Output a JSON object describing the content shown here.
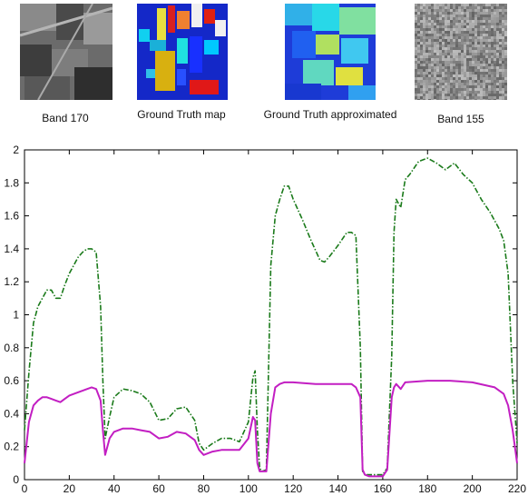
{
  "thumbnails": [
    {
      "caption": "Band 170",
      "kind": "grayscale-band-image"
    },
    {
      "caption": "Ground Truth map",
      "kind": "classification-map"
    },
    {
      "caption": "Ground Truth approximated",
      "kind": "approximated-map"
    },
    {
      "caption": "Band 155",
      "kind": "noise-band-image"
    }
  ],
  "colors": {
    "green_series": "#1a7a1a",
    "magenta_series": "#c21ec2",
    "axis": "#000000"
  },
  "chart_data": {
    "type": "line",
    "title": "",
    "xlabel": "",
    "ylabel": "",
    "xlim": [
      0,
      220
    ],
    "ylim": [
      0,
      2
    ],
    "xticks": [
      "0",
      "20",
      "40",
      "60",
      "80",
      "100",
      "120",
      "140",
      "160",
      "180",
      "200",
      "220"
    ],
    "yticks": [
      "0",
      "0.2",
      "0.4",
      "0.6",
      "0.8",
      "1",
      "1.2",
      "1.4",
      "1.6",
      "1.8",
      "2"
    ],
    "grid": false,
    "series": [
      {
        "style": "dash-dot",
        "color": "#1a7a1a",
        "x": [
          0,
          2,
          4,
          6,
          8,
          10,
          12,
          14,
          16,
          18,
          20,
          22,
          24,
          26,
          28,
          30,
          32,
          34,
          35,
          36,
          38,
          40,
          44,
          48,
          52,
          56,
          60,
          64,
          68,
          72,
          76,
          78,
          80,
          84,
          88,
          92,
          96,
          100,
          102,
          103,
          104,
          105,
          106,
          108,
          110,
          112,
          114,
          116,
          118,
          120,
          124,
          128,
          132,
          134,
          136,
          140,
          144,
          146,
          148,
          150,
          151,
          152,
          154,
          156,
          158,
          160,
          162,
          164,
          165,
          166,
          168,
          170,
          172,
          176,
          180,
          184,
          188,
          192,
          196,
          200,
          204,
          208,
          212,
          214,
          216,
          218,
          220
        ],
        "values": [
          0.3,
          0.65,
          0.95,
          1.05,
          1.1,
          1.15,
          1.15,
          1.1,
          1.1,
          1.18,
          1.25,
          1.3,
          1.35,
          1.38,
          1.4,
          1.4,
          1.38,
          1.05,
          0.6,
          0.25,
          0.38,
          0.5,
          0.55,
          0.54,
          0.52,
          0.47,
          0.36,
          0.37,
          0.43,
          0.44,
          0.36,
          0.22,
          0.18,
          0.22,
          0.25,
          0.25,
          0.23,
          0.35,
          0.62,
          0.66,
          0.3,
          0.07,
          0.05,
          0.06,
          1.3,
          1.6,
          1.7,
          1.78,
          1.78,
          1.7,
          1.58,
          1.45,
          1.33,
          1.32,
          1.35,
          1.42,
          1.5,
          1.5,
          1.48,
          0.8,
          0.05,
          0.03,
          0.03,
          0.03,
          0.03,
          0.03,
          0.07,
          0.75,
          1.5,
          1.7,
          1.65,
          1.82,
          1.85,
          1.93,
          1.95,
          1.92,
          1.88,
          1.92,
          1.85,
          1.8,
          1.7,
          1.62,
          1.52,
          1.45,
          1.25,
          0.6,
          0.22
        ]
      },
      {
        "style": "solid",
        "color": "#c21ec2",
        "x": [
          0,
          2,
          4,
          6,
          8,
          10,
          12,
          14,
          16,
          18,
          20,
          24,
          28,
          30,
          32,
          34,
          35,
          36,
          38,
          40,
          44,
          48,
          52,
          56,
          60,
          64,
          68,
          72,
          76,
          78,
          80,
          84,
          88,
          92,
          96,
          100,
          102,
          103,
          104,
          105,
          106,
          108,
          110,
          112,
          114,
          116,
          120,
          130,
          140,
          146,
          148,
          150,
          151,
          152,
          154,
          156,
          158,
          160,
          162,
          164,
          165,
          166,
          168,
          170,
          180,
          190,
          200,
          210,
          214,
          216,
          218,
          220
        ],
        "values": [
          0.1,
          0.35,
          0.45,
          0.48,
          0.5,
          0.5,
          0.49,
          0.48,
          0.47,
          0.49,
          0.51,
          0.53,
          0.55,
          0.56,
          0.55,
          0.48,
          0.3,
          0.15,
          0.25,
          0.29,
          0.31,
          0.31,
          0.3,
          0.29,
          0.25,
          0.26,
          0.29,
          0.28,
          0.24,
          0.18,
          0.15,
          0.17,
          0.18,
          0.18,
          0.18,
          0.25,
          0.38,
          0.36,
          0.1,
          0.05,
          0.05,
          0.05,
          0.4,
          0.56,
          0.58,
          0.59,
          0.59,
          0.58,
          0.58,
          0.58,
          0.56,
          0.5,
          0.06,
          0.03,
          0.02,
          0.02,
          0.02,
          0.02,
          0.06,
          0.5,
          0.56,
          0.58,
          0.55,
          0.59,
          0.6,
          0.6,
          0.59,
          0.56,
          0.52,
          0.45,
          0.3,
          0.1
        ]
      }
    ]
  }
}
